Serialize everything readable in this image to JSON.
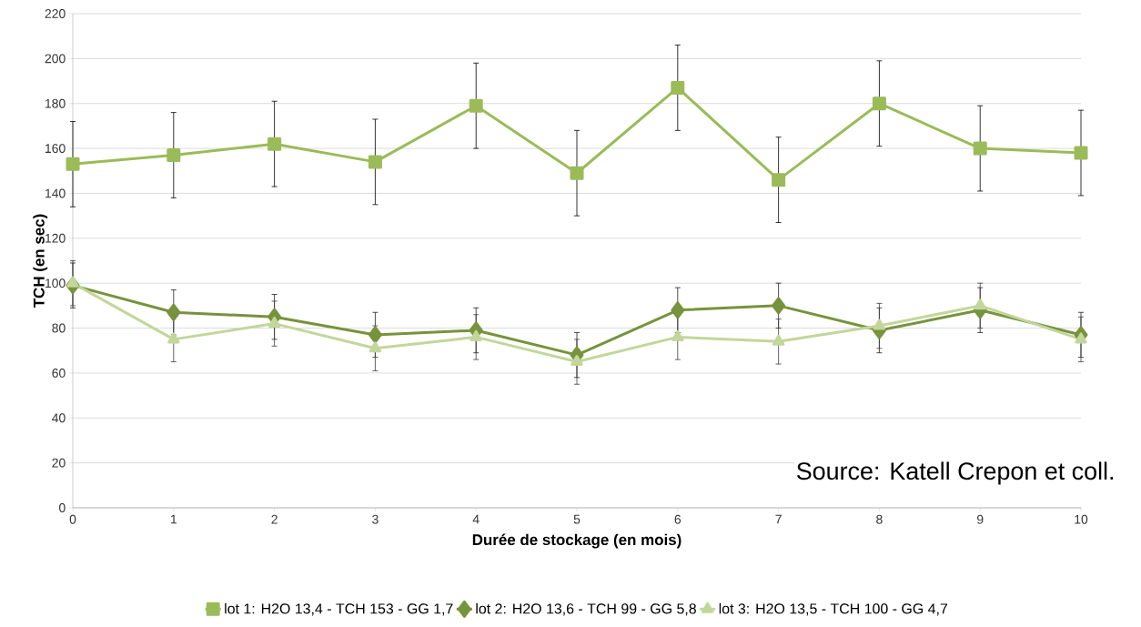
{
  "chart_data": {
    "type": "line",
    "xlabel": "Durée de stockage (en mois)",
    "ylabel": "TCH (en sec)",
    "x": [
      0,
      1,
      2,
      3,
      4,
      5,
      6,
      7,
      8,
      9,
      10
    ],
    "xlim": [
      0,
      10
    ],
    "xticks": [
      0,
      1,
      2,
      3,
      4,
      5,
      6,
      7,
      8,
      9,
      10
    ],
    "ylim": [
      0,
      220
    ],
    "yticks": [
      0,
      20,
      40,
      60,
      80,
      100,
      120,
      140,
      160,
      180,
      200,
      220
    ],
    "grid": "y",
    "legend": "bottom",
    "series": [
      {
        "name": "lot 1: H2O 13,4 - TCH 153 - GG 1,7",
        "color": "#9bbb59",
        "marker": "square",
        "values": [
          153,
          157,
          162,
          154,
          179,
          149,
          187,
          146,
          180,
          160,
          158
        ],
        "errors": [
          19,
          19,
          19,
          19,
          19,
          19,
          19,
          19,
          19,
          19,
          19
        ]
      },
      {
        "name": "lot 2: H2O 13,6 - TCH 99 - GG 5,8",
        "color": "#77933c",
        "marker": "diamond",
        "values": [
          99,
          87,
          85,
          77,
          79,
          68,
          88,
          90,
          79,
          88,
          77
        ],
        "errors": [
          10,
          10,
          10,
          10,
          10,
          10,
          10,
          10,
          10,
          10,
          10
        ]
      },
      {
        "name": "lot 3: H2O 13,5 - TCH 100 - GG 4,7",
        "color": "#c3d69b",
        "marker": "triangle",
        "values": [
          100,
          75,
          82,
          71,
          76,
          65,
          76,
          74,
          81,
          90,
          75
        ],
        "errors": [
          10,
          10,
          10,
          10,
          10,
          10,
          10,
          10,
          10,
          10,
          10
        ]
      }
    ],
    "annotations": [
      "Source: Katell Crepon et coll."
    ]
  }
}
